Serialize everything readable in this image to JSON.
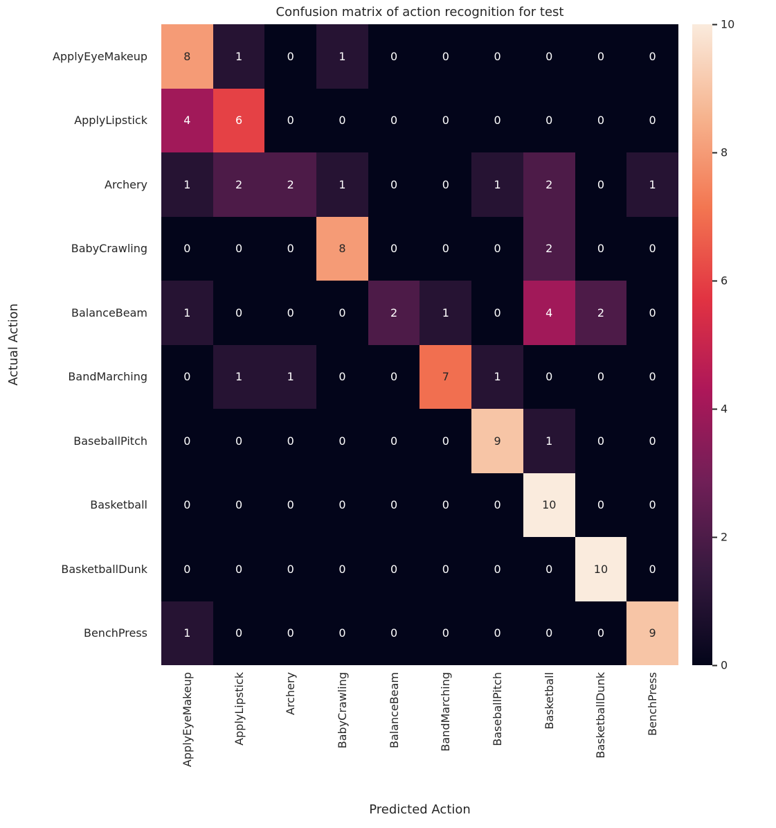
{
  "chart_data": {
    "type": "heatmap",
    "title": "Confusion matrix of action recognition for test",
    "xlabel": "Predicted Action",
    "ylabel": "Actual Action",
    "categories": [
      "ApplyEyeMakeup",
      "ApplyLipstick",
      "Archery",
      "BabyCrawling",
      "BalanceBeam",
      "BandMarching",
      "BaseballPitch",
      "Basketball",
      "BasketballDunk",
      "BenchPress"
    ],
    "matrix": [
      [
        8,
        1,
        0,
        1,
        0,
        0,
        0,
        0,
        0,
        0
      ],
      [
        4,
        6,
        0,
        0,
        0,
        0,
        0,
        0,
        0,
        0
      ],
      [
        1,
        2,
        2,
        1,
        0,
        0,
        1,
        2,
        0,
        1
      ],
      [
        0,
        0,
        0,
        8,
        0,
        0,
        0,
        2,
        0,
        0
      ],
      [
        1,
        0,
        0,
        0,
        2,
        1,
        0,
        4,
        2,
        0
      ],
      [
        0,
        1,
        1,
        0,
        0,
        7,
        1,
        0,
        0,
        0
      ],
      [
        0,
        0,
        0,
        0,
        0,
        0,
        9,
        1,
        0,
        0
      ],
      [
        0,
        0,
        0,
        0,
        0,
        0,
        0,
        10,
        0,
        0
      ],
      [
        0,
        0,
        0,
        0,
        0,
        0,
        0,
        0,
        10,
        0
      ],
      [
        1,
        0,
        0,
        0,
        0,
        0,
        0,
        0,
        0,
        9
      ]
    ],
    "colormap": "rocket",
    "vmin": 0,
    "vmax": 10,
    "colorbar_ticks": [
      0,
      2,
      4,
      6,
      8,
      10
    ],
    "legend_position": "right",
    "grid": false,
    "annotated": true
  }
}
